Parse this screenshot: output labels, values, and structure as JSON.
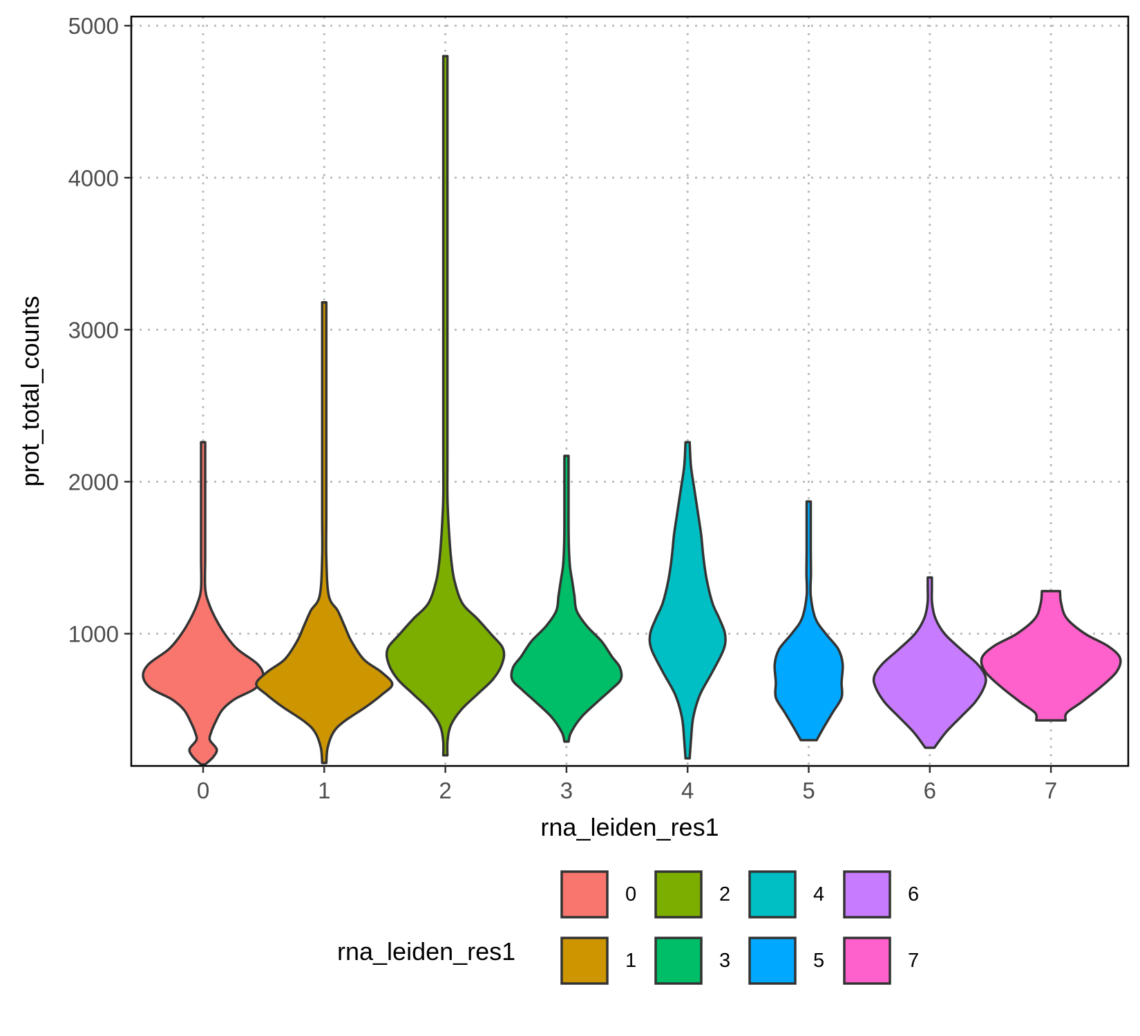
{
  "chart_data": {
    "type": "violin",
    "xlabel": "rna_leiden_res1",
    "ylabel": "prot_total_counts",
    "ylim": [
      130,
      5060
    ],
    "yticks": [
      1000,
      2000,
      3000,
      4000,
      5000
    ],
    "categories": [
      "0",
      "1",
      "2",
      "3",
      "4",
      "5",
      "6",
      "7"
    ],
    "grid": "on (dotted, major x and y)",
    "legend": {
      "title": "rna_leiden_res1",
      "placement": "bottom",
      "entries": [
        "0",
        "1",
        "2",
        "3",
        "4",
        "5",
        "6",
        "7"
      ]
    },
    "colors": [
      "#F8766D",
      "#CD9600",
      "#7CAE00",
      "#00BE67",
      "#00BFC4",
      "#00A9FF",
      "#C77CFF",
      "#FF61CC"
    ],
    "series": [
      {
        "name": "0",
        "min": 130,
        "max": 2260,
        "profile": [
          [
            140,
            0.005
          ],
          [
            190,
            0.09
          ],
          [
            240,
            0.12
          ],
          [
            300,
            0.06
          ],
          [
            350,
            0.07
          ],
          [
            420,
            0.11
          ],
          [
            500,
            0.17
          ],
          [
            570,
            0.28
          ],
          [
            640,
            0.46
          ],
          [
            720,
            0.53
          ],
          [
            800,
            0.48
          ],
          [
            900,
            0.3
          ],
          [
            1000,
            0.19
          ],
          [
            1100,
            0.11
          ],
          [
            1200,
            0.05
          ],
          [
            1300,
            0.015
          ],
          [
            1500,
            0.005
          ],
          [
            1800,
            0.004
          ],
          [
            2260,
            0.003
          ]
        ]
      },
      {
        "name": "1",
        "min": 150,
        "max": 3180,
        "profile": [
          [
            150,
            0.006
          ],
          [
            250,
            0.03
          ],
          [
            350,
            0.08
          ],
          [
            420,
            0.17
          ],
          [
            520,
            0.37
          ],
          [
            600,
            0.51
          ],
          [
            670,
            0.6
          ],
          [
            750,
            0.5
          ],
          [
            830,
            0.35
          ],
          [
            950,
            0.24
          ],
          [
            1050,
            0.18
          ],
          [
            1150,
            0.12
          ],
          [
            1250,
            0.04
          ],
          [
            1500,
            0.015
          ],
          [
            1800,
            0.007
          ],
          [
            2500,
            0.005
          ],
          [
            3180,
            0.004
          ]
        ]
      },
      {
        "name": "2",
        "min": 200,
        "max": 4800,
        "profile": [
          [
            200,
            0.005
          ],
          [
            300,
            0.02
          ],
          [
            400,
            0.05
          ],
          [
            500,
            0.14
          ],
          [
            600,
            0.28
          ],
          [
            700,
            0.42
          ],
          [
            800,
            0.5
          ],
          [
            900,
            0.51
          ],
          [
            1000,
            0.4
          ],
          [
            1100,
            0.28
          ],
          [
            1200,
            0.15
          ],
          [
            1350,
            0.08
          ],
          [
            1500,
            0.05
          ],
          [
            1700,
            0.03
          ],
          [
            1900,
            0.016
          ],
          [
            2200,
            0.007
          ],
          [
            3000,
            0.005
          ],
          [
            4000,
            0.004
          ],
          [
            4800,
            0.003
          ]
        ]
      },
      {
        "name": "3",
        "min": 280,
        "max": 2170,
        "profile": [
          [
            290,
            0.01
          ],
          [
            350,
            0.04
          ],
          [
            450,
            0.13
          ],
          [
            550,
            0.27
          ],
          [
            630,
            0.39
          ],
          [
            700,
            0.48
          ],
          [
            780,
            0.47
          ],
          [
            850,
            0.4
          ],
          [
            950,
            0.31
          ],
          [
            1050,
            0.18
          ],
          [
            1150,
            0.09
          ],
          [
            1250,
            0.07
          ],
          [
            1350,
            0.05
          ],
          [
            1450,
            0.03
          ],
          [
            1600,
            0.02
          ],
          [
            1800,
            0.01
          ],
          [
            2170,
            0.005
          ]
        ]
      },
      {
        "name": "4",
        "min": 180,
        "max": 2260,
        "profile": [
          [
            180,
            0.01
          ],
          [
            300,
            0.03
          ],
          [
            450,
            0.05
          ],
          [
            600,
            0.11
          ],
          [
            750,
            0.22
          ],
          [
            900,
            0.32
          ],
          [
            1000,
            0.33
          ],
          [
            1100,
            0.28
          ],
          [
            1200,
            0.22
          ],
          [
            1350,
            0.17
          ],
          [
            1500,
            0.14
          ],
          [
            1650,
            0.12
          ],
          [
            1800,
            0.09
          ],
          [
            1950,
            0.06
          ],
          [
            2100,
            0.03
          ],
          [
            2260,
            0.01
          ]
        ]
      },
      {
        "name": "5",
        "min": 300,
        "max": 1870,
        "profile": [
          [
            300,
            0.07
          ],
          [
            380,
            0.13
          ],
          [
            480,
            0.21
          ],
          [
            580,
            0.29
          ],
          [
            680,
            0.29
          ],
          [
            800,
            0.3
          ],
          [
            900,
            0.26
          ],
          [
            1000,
            0.15
          ],
          [
            1100,
            0.06
          ],
          [
            1250,
            0.015
          ],
          [
            1400,
            0.02
          ],
          [
            1550,
            0.01
          ],
          [
            1700,
            0.006
          ],
          [
            1870,
            0.005
          ]
        ]
      },
      {
        "name": "6",
        "min": 250,
        "max": 1370,
        "profile": [
          [
            250,
            0.04
          ],
          [
            350,
            0.14
          ],
          [
            450,
            0.27
          ],
          [
            550,
            0.4
          ],
          [
            650,
            0.48
          ],
          [
            720,
            0.49
          ],
          [
            800,
            0.42
          ],
          [
            900,
            0.27
          ],
          [
            1000,
            0.13
          ],
          [
            1100,
            0.05
          ],
          [
            1200,
            0.02
          ],
          [
            1300,
            0.01
          ],
          [
            1370,
            0.008
          ]
        ]
      },
      {
        "name": "7",
        "min": 430,
        "max": 1280,
        "profile": [
          [
            430,
            0.13
          ],
          [
            480,
            0.14
          ],
          [
            550,
            0.27
          ],
          [
            650,
            0.44
          ],
          [
            750,
            0.58
          ],
          [
            840,
            0.61
          ],
          [
            920,
            0.5
          ],
          [
            1000,
            0.3
          ],
          [
            1100,
            0.14
          ],
          [
            1200,
            0.09
          ],
          [
            1280,
            0.08
          ]
        ]
      }
    ]
  }
}
